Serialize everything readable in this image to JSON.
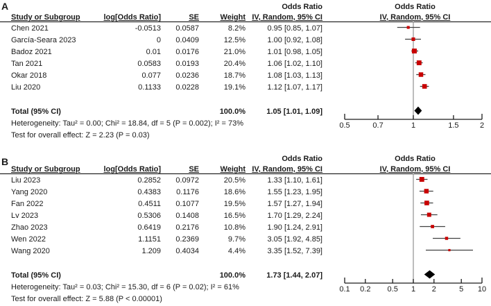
{
  "colors": {
    "marker": "#c80000",
    "diamond": "#000000",
    "ci_line": "#404040",
    "axis_line": "#1a1a1a",
    "null_line": "#999999",
    "text": "#1a1a1a",
    "background": "#ffffff"
  },
  "chart_data": [
    {
      "type": "forest",
      "panel_label": "A",
      "headers": {
        "study": "Study or Subgroup",
        "logor": "log[Odds Ratio]",
        "se": "SE",
        "weight": "Weight",
        "or_title_text_col": "Odds Ratio",
        "ci_text_col": "IV, Random, 95% CI",
        "or_title_plot_col": "Odds Ratio",
        "ci_plot_col": "IV, Random, 95% CI"
      },
      "studies": [
        {
          "name": "Chen 2021",
          "logor": "-0.0513",
          "se": "0.0587",
          "weight": "8.2%",
          "ci_text": "0.95 [0.85, 1.07]",
          "or": 0.95,
          "ci_low": 0.85,
          "ci_high": 1.07,
          "weight_pct": 8.2
        },
        {
          "name": "García-Seara 2023",
          "logor": "0",
          "se": "0.0409",
          "weight": "12.5%",
          "ci_text": "1.00 [0.92, 1.08]",
          "or": 1.0,
          "ci_low": 0.92,
          "ci_high": 1.08,
          "weight_pct": 12.5
        },
        {
          "name": "Badoz 2021",
          "logor": "0.01",
          "se": "0.0176",
          "weight": "21.0%",
          "ci_text": "1.01 [0.98, 1.05]",
          "or": 1.01,
          "ci_low": 0.98,
          "ci_high": 1.05,
          "weight_pct": 21.0
        },
        {
          "name": "Tan 2021",
          "logor": "0.0583",
          "se": "0.0193",
          "weight": "20.4%",
          "ci_text": "1.06 [1.02, 1.10]",
          "or": 1.06,
          "ci_low": 1.02,
          "ci_high": 1.1,
          "weight_pct": 20.4
        },
        {
          "name": "Okar 2018",
          "logor": "0.077",
          "se": "0.0236",
          "weight": "18.7%",
          "ci_text": "1.08 [1.03, 1.13]",
          "or": 1.08,
          "ci_low": 1.03,
          "ci_high": 1.13,
          "weight_pct": 18.7
        },
        {
          "name": "Liu 2020",
          "logor": "0.1133",
          "se": "0.0228",
          "weight": "19.1%",
          "ci_text": "1.12 [1.07, 1.17]",
          "or": 1.12,
          "ci_low": 1.07,
          "ci_high": 1.17,
          "weight_pct": 19.1
        }
      ],
      "total": {
        "label": "Total (95% CI)",
        "weight": "100.0%",
        "ci_text": "1.05 [1.01, 1.09]",
        "or": 1.05,
        "ci_low": 1.01,
        "ci_high": 1.09
      },
      "heterogeneity": "Heterogeneity: Tau² = 0.00; Chi² = 18.84, df = 5 (P = 0.002); I² = 73%",
      "overall_test": "Test for overall effect: Z = 2.23 (P = 0.03)",
      "axis": {
        "scale": "log",
        "min": 0.5,
        "max": 2,
        "ticks": [
          0.5,
          0.7,
          1,
          1.5,
          2
        ],
        "tick_labels": [
          "0.5",
          "0.7",
          "1",
          "1.5",
          "2"
        ],
        "null_value": 1
      }
    },
    {
      "type": "forest",
      "panel_label": "B",
      "headers": {
        "study": "Study or Subgroup",
        "logor": "log[Odds Ratio]",
        "se": "SE",
        "weight": "Weight",
        "or_title_text_col": "Odds Ratio",
        "ci_text_col": "IV, Random, 95% CI",
        "or_title_plot_col": "Odds Ratio",
        "ci_plot_col": "IV, Random, 95% CI"
      },
      "studies": [
        {
          "name": "Liu 2023",
          "logor": "0.2852",
          "se": "0.0972",
          "weight": "20.5%",
          "ci_text": "1.33 [1.10, 1.61]",
          "or": 1.33,
          "ci_low": 1.1,
          "ci_high": 1.61,
          "weight_pct": 20.5
        },
        {
          "name": "Yang 2020",
          "logor": "0.4383",
          "se": "0.1176",
          "weight": "18.6%",
          "ci_text": "1.55 [1.23, 1.95]",
          "or": 1.55,
          "ci_low": 1.23,
          "ci_high": 1.95,
          "weight_pct": 18.6
        },
        {
          "name": "Fan 2022",
          "logor": "0.4511",
          "se": "0.1077",
          "weight": "19.5%",
          "ci_text": "1.57 [1.27, 1.94]",
          "or": 1.57,
          "ci_low": 1.27,
          "ci_high": 1.94,
          "weight_pct": 19.5
        },
        {
          "name": "Lv 2023",
          "logor": "0.5306",
          "se": "0.1408",
          "weight": "16.5%",
          "ci_text": "1.70 [1.29, 2.24]",
          "or": 1.7,
          "ci_low": 1.29,
          "ci_high": 2.24,
          "weight_pct": 16.5
        },
        {
          "name": "Zhao 2023",
          "logor": "0.6419",
          "se": "0.2176",
          "weight": "10.8%",
          "ci_text": "1.90 [1.24, 2.91]",
          "or": 1.9,
          "ci_low": 1.24,
          "ci_high": 2.91,
          "weight_pct": 10.8
        },
        {
          "name": "Wen 2022",
          "logor": "1.1151",
          "se": "0.2369",
          "weight": "9.7%",
          "ci_text": "3.05 [1.92, 4.85]",
          "or": 3.05,
          "ci_low": 1.92,
          "ci_high": 4.85,
          "weight_pct": 9.7
        },
        {
          "name": "Wang 2020",
          "logor": "1.209",
          "se": "0.4034",
          "weight": "4.4%",
          "ci_text": "3.35 [1.52, 7.39]",
          "or": 3.35,
          "ci_low": 1.52,
          "ci_high": 7.39,
          "weight_pct": 4.4
        }
      ],
      "total": {
        "label": "Total (95% CI)",
        "weight": "100.0%",
        "ci_text": "1.73 [1.44, 2.07]",
        "or": 1.73,
        "ci_low": 1.44,
        "ci_high": 2.07
      },
      "heterogeneity": "Heterogeneity: Tau² = 0.03; Chi² = 15.30, df = 6 (P = 0.02); I² = 61%",
      "overall_test": "Test for overall effect: Z = 5.88 (P < 0.00001)",
      "axis": {
        "scale": "log",
        "min": 0.1,
        "max": 10,
        "ticks": [
          0.1,
          0.2,
          0.5,
          1,
          2,
          5,
          10
        ],
        "tick_labels": [
          "0.1",
          "0.2",
          "0.5",
          "1",
          "2",
          "5",
          "10"
        ],
        "null_value": 1
      }
    }
  ]
}
